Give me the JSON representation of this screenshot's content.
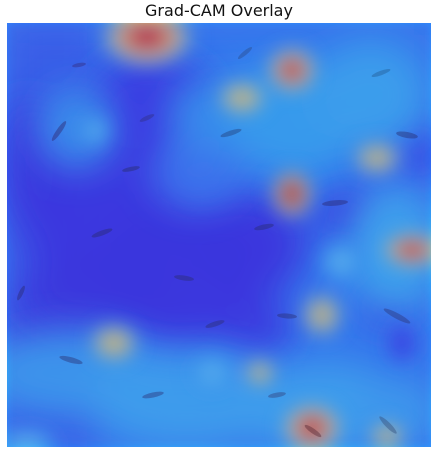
{
  "title": "Grad-CAM Overlay",
  "image": {
    "kind": "grad-cam-heatmap-overlay",
    "colormap": "jet",
    "palette": {
      "low": "#2a2df0",
      "mid_low": "#2f87ff",
      "mid": "#25d8ff",
      "mid_high": "#f6f36a",
      "high": "#ff5b1b",
      "peak": "#d11212",
      "shadow": "#443a9f"
    }
  }
}
